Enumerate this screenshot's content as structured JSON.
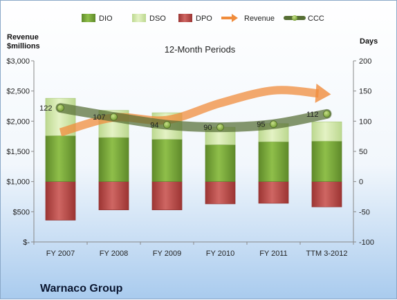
{
  "chart_data": {
    "type": "bar",
    "title": "Warnaco Group",
    "subtitle": "12-Month Periods",
    "left_axis_title": [
      "Revenue",
      "$millions"
    ],
    "right_axis_title": "Days",
    "left_ticks": [
      "$-",
      "$500",
      "$1,000",
      "$1,500",
      "$2,000",
      "$2,500",
      "$3,000"
    ],
    "right_ticks": [
      "-100",
      "-50",
      "0",
      "50",
      "100",
      "150",
      "200"
    ],
    "ylim_left": [
      0,
      3000
    ],
    "ylim_right": [
      -100,
      200
    ],
    "grid": false,
    "legend_position": "top",
    "categories": [
      "FY 2007",
      "FY 2008",
      "FY 2009",
      "FY 2010",
      "FY 2011",
      "TTM 3-2012"
    ],
    "series": [
      {
        "name": "DIO",
        "kind": "stacked-bar",
        "axis": "days",
        "color": "#7cab3c",
        "values": [
          76,
          73,
          70,
          61,
          66,
          67
        ]
      },
      {
        "name": "DSO",
        "kind": "stacked-bar",
        "axis": "days",
        "color": "#d6ebac",
        "values": [
          62,
          45,
          44,
          29,
          30,
          32
        ]
      },
      {
        "name": "DPO",
        "kind": "negative-bar",
        "axis": "days",
        "color": "#c0504d",
        "values": [
          -64,
          -47,
          -47,
          -37,
          -36,
          -42
        ]
      },
      {
        "name": "Revenue",
        "kind": "arrow-line",
        "axis": "revenue",
        "color": "#f08c3c",
        "values": [
          1815,
          2060,
          2020,
          2300,
          2510,
          2450
        ]
      },
      {
        "name": "CCC",
        "kind": "line",
        "axis": "days",
        "color": "#566e34",
        "values": [
          122,
          107,
          94,
          90,
          95,
          112
        ],
        "labels": [
          "122",
          "107",
          "94",
          "90",
          "95",
          "112"
        ]
      }
    ]
  }
}
